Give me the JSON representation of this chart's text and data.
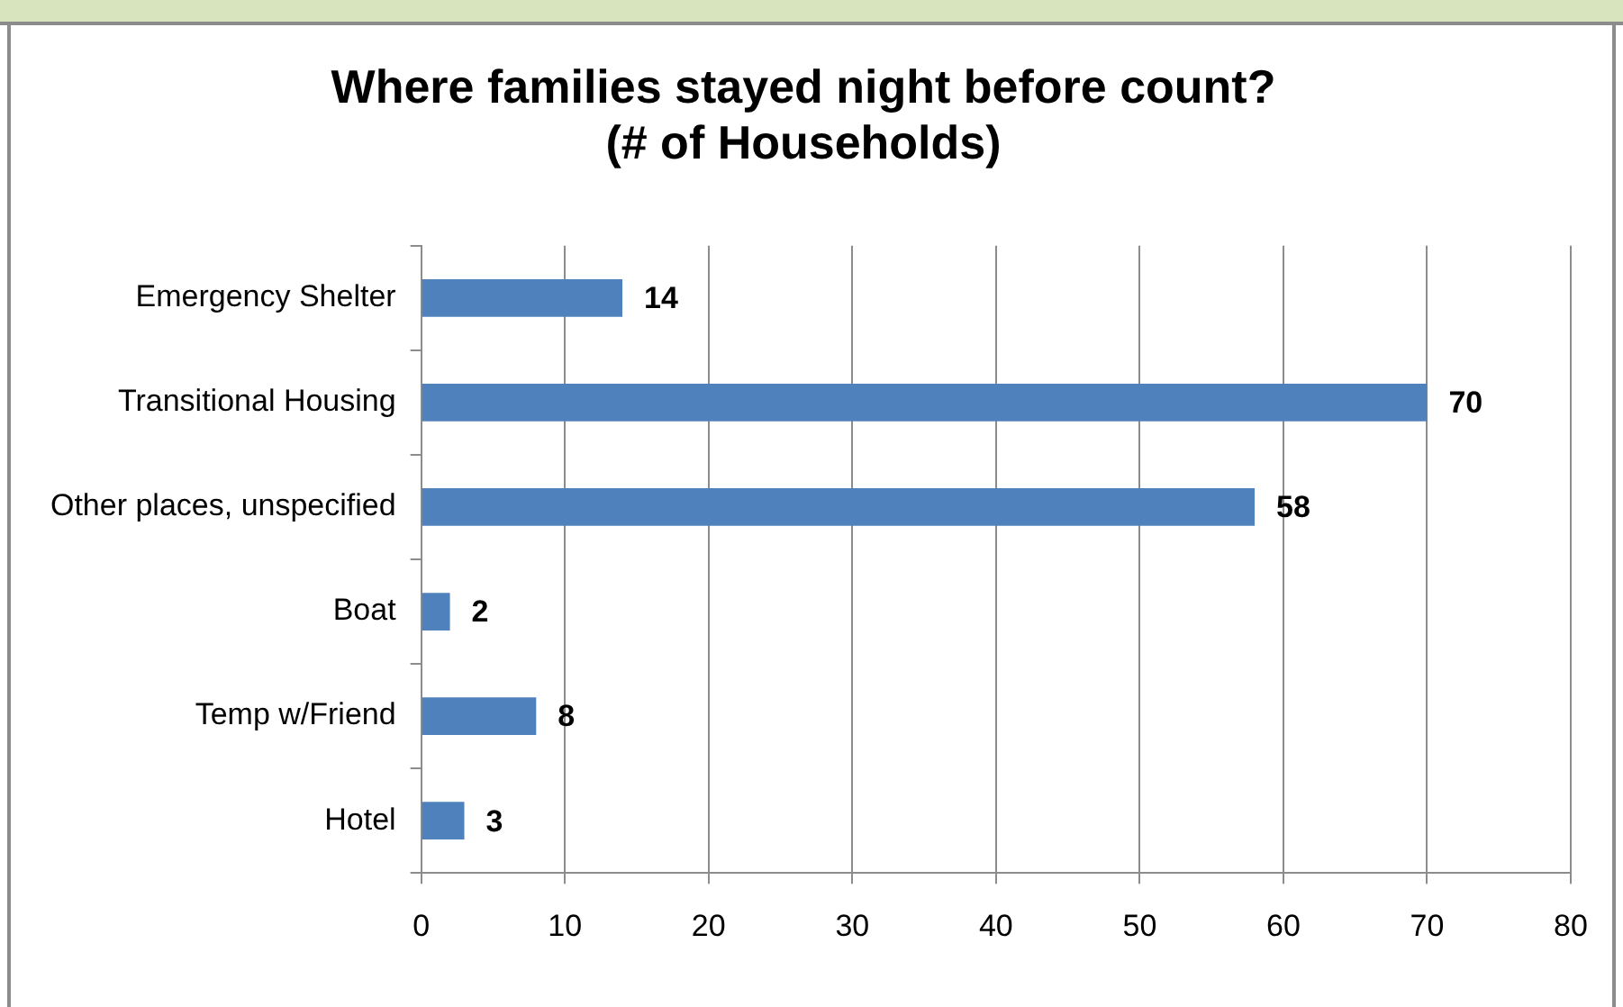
{
  "chart_data": {
    "type": "bar",
    "orientation": "horizontal",
    "title": "Where families stayed night before count?\n(# of Households)",
    "categories": [
      "Emergency Shelter",
      "Transitional Housing",
      "Other places, unspecified",
      "Boat",
      "Temp w/Friend",
      "Hotel"
    ],
    "values": [
      14,
      70,
      58,
      2,
      8,
      3
    ],
    "color": "#4f81bd",
    "xlim": [
      0,
      80
    ],
    "xticks": [
      0,
      10,
      20,
      30,
      40,
      50,
      60,
      70,
      80
    ],
    "grid": "x",
    "data_labels": true,
    "legend": false
  }
}
